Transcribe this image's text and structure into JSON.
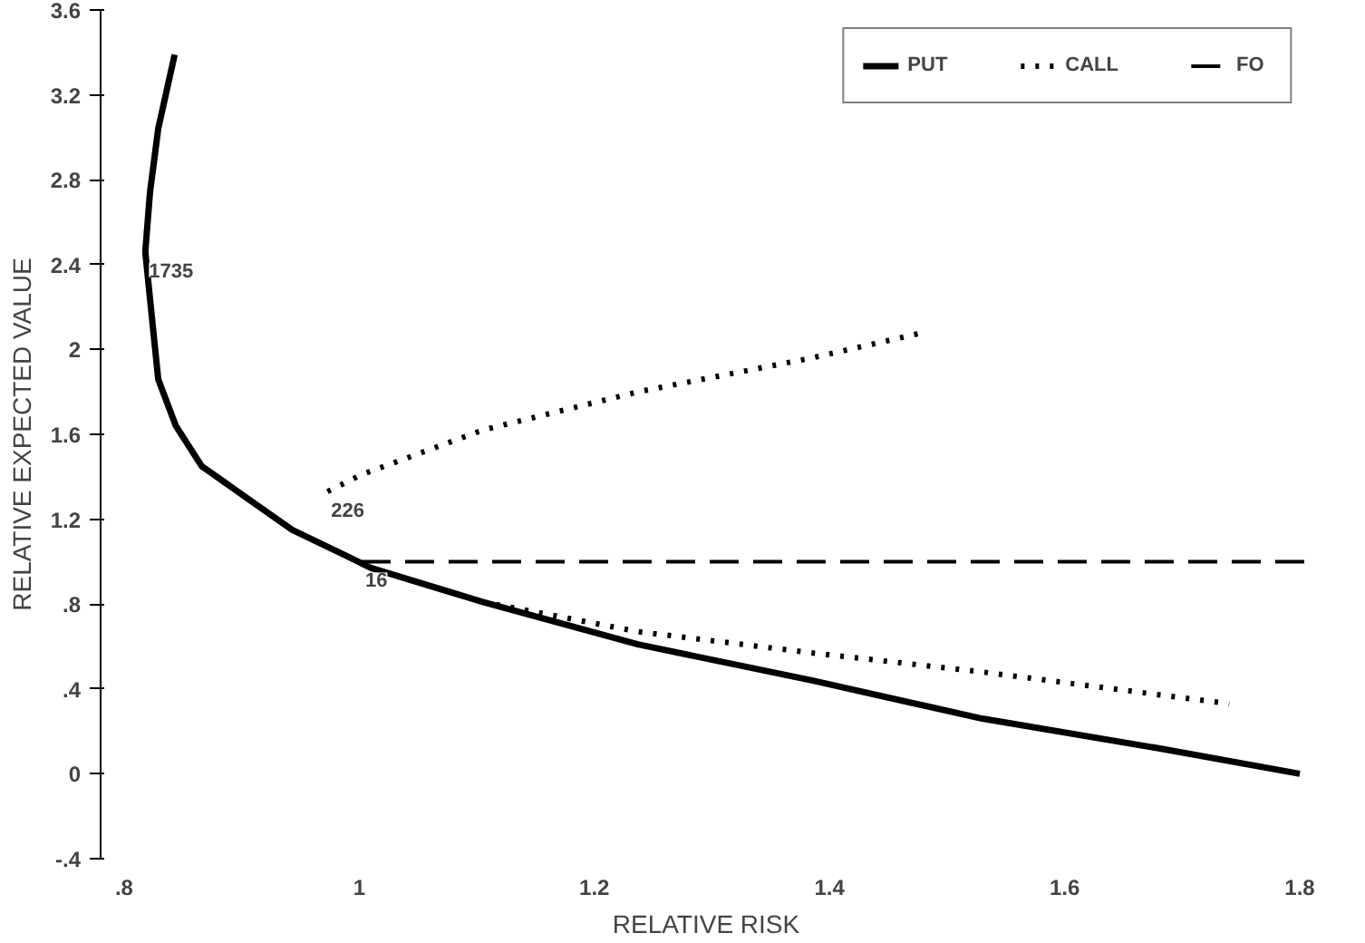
{
  "chart_data": {
    "type": "line",
    "xlabel": "RELATIVE RISK",
    "ylabel": "RELATIVE EXPECTED VALUE",
    "xlim": [
      0.78,
      1.81
    ],
    "ylim": [
      -0.4,
      3.6
    ],
    "xticks": [
      {
        "value": 0.8,
        "label": ".8"
      },
      1,
      1.2,
      1.4,
      1.6,
      1.8
    ],
    "yticks": [
      {
        "value": -0.4,
        "label": "-.4"
      },
      0,
      {
        "value": 0.4,
        "label": ".4"
      },
      {
        "value": 0.8,
        "label": ".8"
      },
      1.2,
      1.6,
      2,
      2.4,
      2.8,
      3.2,
      3.6
    ],
    "legend": "top right",
    "grid": false,
    "series": [
      {
        "name": "PUT",
        "color": "#000000",
        "line_style": "solid",
        "x": [
          0.843,
          0.829,
          0.822,
          0.818,
          0.822,
          0.829,
          0.844,
          0.866,
          0.907,
          0.943,
          0.988,
          1.01,
          1.105,
          1.237,
          1.385,
          1.53,
          1.68,
          1.8
        ],
        "values": [
          3.39,
          3.04,
          2.74,
          2.46,
          2.24,
          1.86,
          1.64,
          1.45,
          1.29,
          1.15,
          1.03,
          0.97,
          0.81,
          0.61,
          0.44,
          0.26,
          0.12,
          0.0
        ]
      },
      {
        "name": "CALL",
        "color": "#000000",
        "line_style": "dotted",
        "x": [
          0.973,
          1.002,
          1.105,
          1.237,
          1.385,
          1.48,
          null,
          1.01,
          1.105,
          1.237,
          1.385,
          1.53,
          1.74
        ],
        "values": [
          1.33,
          1.41,
          1.62,
          1.8,
          1.96,
          2.08,
          null,
          0.97,
          0.81,
          0.67,
          0.57,
          0.48,
          0.33
        ]
      },
      {
        "name": "FO",
        "color": "#000000",
        "line_style": "dashed",
        "x": [
          1.002,
          1.81
        ],
        "values": [
          1.0,
          1.0
        ]
      }
    ],
    "annotations": [
      {
        "text": "1735",
        "x": 0.818,
        "y": 2.46
      },
      {
        "text": "226",
        "x": 0.973,
        "y": 1.33
      },
      {
        "text": "16",
        "x": 1.002,
        "y": 1.0
      }
    ]
  }
}
